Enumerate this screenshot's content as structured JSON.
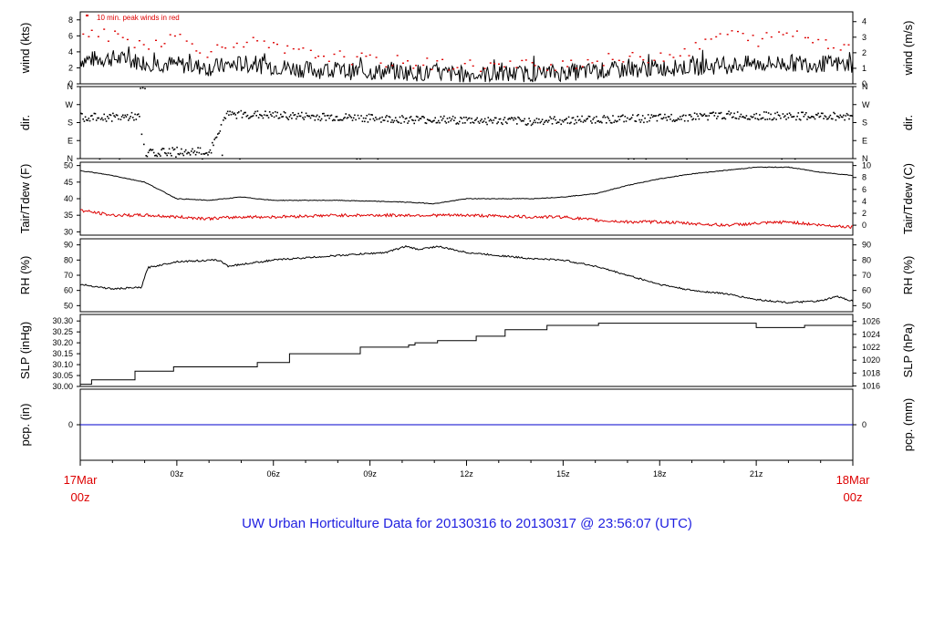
{
  "chart_data": {
    "type": "line",
    "title": "UW Urban Horticulture Data for 20130316  to  20130317 @ 23:56:07  (UTC)",
    "x_axis": {
      "start_label": [
        "17Mar",
        "00z"
      ],
      "end_label": [
        "18Mar",
        "00z"
      ],
      "tick_labels": [
        "03z",
        "06z",
        "09z",
        "12z",
        "15z",
        "18z",
        "21z"
      ],
      "range_hours": [
        0,
        24
      ]
    },
    "colors": {
      "primary": "#000000",
      "peak": "#dd0000",
      "dew": "#dd0000",
      "precip": "#0000cc",
      "time_label": "#dd0000",
      "title": "#1f1fe0"
    },
    "panels": [
      {
        "id": "wind",
        "ylabel_left": "wind (kts)",
        "ylabel_right": "wind (m/s)",
        "ylim": [
          0,
          9
        ],
        "yticks_left": [
          "0",
          "2",
          "4",
          "6",
          "8"
        ],
        "yticks_right": [
          "0",
          "1",
          "2",
          "3",
          "4"
        ],
        "legend": "10 min. peak winds in red",
        "series": [
          {
            "name": "wind speed",
            "hours": [
              0,
              1,
              2,
              3,
              4,
              5,
              6,
              7,
              8,
              9,
              10,
              11,
              12,
              13,
              14,
              15,
              16,
              17,
              18,
              19,
              20,
              21,
              22,
              23,
              24
            ],
            "values": [
              3.0,
              3.2,
              2.7,
              2.4,
              2.0,
              2.5,
              2.2,
              1.8,
              1.6,
              1.5,
              1.5,
              1.3,
              1.2,
              1.2,
              1.3,
              1.4,
              1.6,
              1.8,
              2.0,
              2.1,
              2.3,
              2.5,
              2.6,
              2.5,
              2.4
            ]
          },
          {
            "name": "peak",
            "hours": [
              0,
              1,
              2,
              3,
              4,
              5,
              6,
              7,
              8,
              9,
              10,
              11,
              12,
              13,
              14,
              15,
              16,
              17,
              18,
              19,
              20,
              21,
              22,
              23,
              24
            ],
            "values": [
              6.5,
              6.0,
              5.0,
              6.0,
              4.0,
              5.5,
              4.5,
              3.8,
              3.5,
              3.0,
              2.8,
              2.5,
              2.4,
              2.3,
              2.4,
              2.6,
              3.0,
              3.2,
              3.6,
              4.3,
              6.5,
              5.5,
              6.5,
              5.5,
              4.5
            ]
          }
        ]
      },
      {
        "id": "dir",
        "ylabel_left": "dir.",
        "ylabel_right": "dir.",
        "ylim": [
          0,
          360
        ],
        "yticks_left": [
          "N",
          "E",
          "S",
          "W",
          "N"
        ],
        "yticks_right": [
          "N",
          "E",
          "S",
          "W",
          "N"
        ],
        "series": [
          {
            "name": "direction",
            "hours": [
              0,
              1,
              1.8,
              2.0,
              3.0,
              4.0,
              4.5,
              5,
              6,
              8,
              10,
              12,
              14,
              16,
              18,
              20,
              22,
              24
            ],
            "values": [
              210,
              210,
              215,
              30,
              40,
              40,
              220,
              225,
              220,
              210,
              200,
              195,
              190,
              200,
              205,
              220,
              215,
              215
            ]
          }
        ]
      },
      {
        "id": "temp",
        "ylabel_left": "Tair/Tdew (F)",
        "ylabel_right": "Tair/Tdew (C)",
        "ylim": [
          29,
          51
        ],
        "yticks_left": [
          "30",
          "35",
          "40",
          "45",
          "50"
        ],
        "yticks_right": [
          "0",
          "2",
          "4",
          "6",
          "8",
          "10"
        ],
        "series": [
          {
            "name": "Tair",
            "hours": [
              0,
              1,
              2,
              3,
              4,
              5,
              6,
              8,
              10,
              11,
              12,
              14,
              15,
              16,
              17,
              18,
              19,
              20,
              21,
              22,
              23,
              24
            ],
            "values": [
              48.5,
              47,
              45,
              40,
              39.5,
              40.5,
              39.5,
              39.5,
              39,
              38.5,
              40,
              40,
              40.5,
              41.5,
              44,
              46,
              47.5,
              48.5,
              49.5,
              49.5,
              48,
              47
            ]
          },
          {
            "name": "Tdew",
            "hours": [
              0,
              1,
              2,
              3,
              4,
              5,
              6,
              8,
              10,
              12,
              14,
              15,
              16,
              17,
              18,
              19,
              20,
              21,
              22,
              23,
              24
            ],
            "values": [
              36.5,
              35,
              35,
              34.5,
              34,
              34.5,
              34.5,
              35,
              35,
              35,
              34.5,
              34.5,
              33.5,
              33,
              33,
              32.5,
              32,
              32.5,
              33,
              32,
              31.5
            ]
          }
        ]
      },
      {
        "id": "rh",
        "ylabel_left": "RH (%)",
        "ylabel_right": "RH (%)",
        "ylim": [
          46,
          94
        ],
        "yticks_left": [
          "50",
          "60",
          "70",
          "80",
          "90"
        ],
        "yticks_right": [
          "50",
          "60",
          "70",
          "80",
          "90"
        ],
        "series": [
          {
            "name": "RH",
            "hours": [
              0,
              1,
              1.9,
              2.1,
              3,
              4.3,
              4.6,
              6,
              8,
              9.5,
              10.1,
              10.5,
              11.1,
              12,
              14,
              15,
              16,
              17,
              18,
              19,
              20,
              21,
              22,
              23,
              23.5,
              24
            ],
            "values": [
              64,
              61,
              62,
              75,
              79,
              80,
              76,
              80,
              83,
              85,
              89,
              87,
              89,
              85,
              81,
              80,
              76,
              70,
              64,
              60,
              58,
              54,
              52,
              53,
              56,
              53
            ]
          }
        ]
      },
      {
        "id": "slp",
        "ylabel_left": "SLP (inHg)",
        "ylabel_right": "SLP (hPa)",
        "ylim": [
          30.0,
          30.33
        ],
        "yticks_left": [
          "30.00",
          "30.05",
          "30.10",
          "30.15",
          "30.20",
          "30.25",
          "30.30"
        ],
        "yticks_right": [
          "1016",
          "1018",
          "1020",
          "1022",
          "1024",
          "1026"
        ],
        "series": [
          {
            "name": "SLP",
            "hours": [
              0,
              0.35,
              1.7,
              2.9,
              5.5,
              6.5,
              8.7,
              10.2,
              10.4,
              11.1,
              12.3,
              13.2,
              14.5,
              16.1,
              19.0,
              21.0,
              22.5,
              24
            ],
            "values": [
              30.01,
              30.03,
              30.07,
              30.09,
              30.11,
              30.15,
              30.18,
              30.19,
              30.2,
              30.21,
              30.23,
              30.26,
              30.28,
              30.29,
              30.29,
              30.27,
              30.28,
              30.28
            ]
          }
        ]
      },
      {
        "id": "pcp",
        "ylabel_left": "pcp. (in)",
        "ylabel_right": "pcp. (mm)",
        "ylim": [
          -1,
          1
        ],
        "yticks_left": [
          "0"
        ],
        "yticks_right": [
          "0"
        ],
        "series": [
          {
            "name": "precip",
            "hours": [
              0,
              24
            ],
            "values": [
              0,
              0
            ]
          }
        ]
      }
    ]
  }
}
